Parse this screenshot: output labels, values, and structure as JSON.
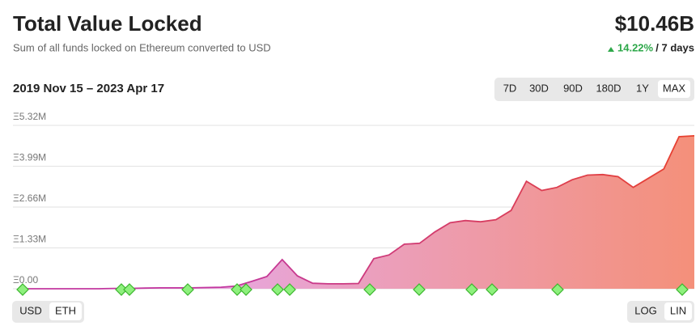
{
  "header": {
    "title": "Total Value Locked",
    "subtitle": "Sum of all funds locked on Ethereum converted to USD",
    "total": "$10.46B",
    "change": "14.22%",
    "period": "/ 7 days",
    "date_range": "2019 Nov 15 – 2023 Apr 17"
  },
  "controls": {
    "ranges": [
      {
        "label": "7D",
        "selected": false
      },
      {
        "label": "30D",
        "selected": false
      },
      {
        "label": "90D",
        "selected": false
      },
      {
        "label": "180D",
        "selected": false
      },
      {
        "label": "1Y",
        "selected": false
      },
      {
        "label": "MAX",
        "selected": true
      }
    ],
    "currencies": [
      {
        "label": "USD",
        "selected": false
      },
      {
        "label": "ETH",
        "selected": true
      }
    ],
    "scales": [
      {
        "label": "LOG",
        "selected": false
      },
      {
        "label": "LIN",
        "selected": true
      }
    ]
  },
  "chart_data": {
    "type": "area",
    "colors": [
      "#c2379f",
      "#e8412e"
    ],
    "fill_colors": [
      "#e7a6dc",
      "#f4907a"
    ],
    "values": [
      0,
      0,
      0,
      0,
      0,
      0,
      10000,
      10000,
      20000,
      30000,
      30000,
      30000,
      40000,
      50000,
      90000,
      240000,
      400000,
      950000,
      420000,
      180000,
      160000,
      160000,
      170000,
      980000,
      1100000,
      1450000,
      1480000,
      1850000,
      2150000,
      2220000,
      2180000,
      2250000,
      2550000,
      3500000,
      3200000,
      3300000,
      3550000,
      3700000,
      3720000,
      3650000,
      3300000,
      3600000,
      3900000,
      4950000,
      4980000
    ],
    "ylim": [
      0,
      5320000
    ],
    "yticks": [
      {
        "value": 5320000,
        "label": "Ξ5.32M"
      },
      {
        "value": 3990000,
        "label": "Ξ3.99M"
      },
      {
        "value": 2660000,
        "label": "Ξ2.66M"
      },
      {
        "value": 1330000,
        "label": "Ξ1.33M"
      },
      {
        "value": 0,
        "label": "Ξ0.00"
      }
    ],
    "grid": true
  }
}
